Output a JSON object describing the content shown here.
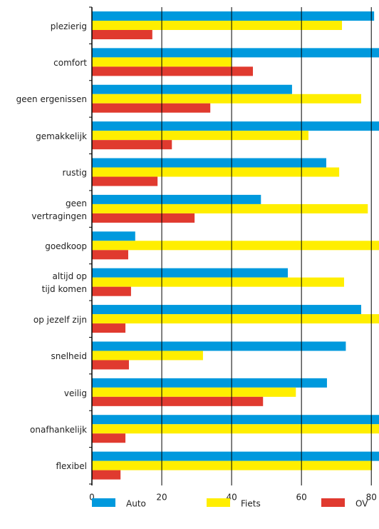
{
  "chart_data": {
    "type": "hbar",
    "categories": [
      "plezierig",
      "comfort",
      "geen ergenissen",
      "gemakkelijk",
      "rustig",
      "geen\nvertragingen",
      "goedkoop",
      "altijd op\ntijd komen",
      "op jezelf zijn",
      "snelheid",
      "veilig",
      "onafhankelijk",
      "flexibel"
    ],
    "series": [
      {
        "name": "Auto",
        "color": "#0099dd",
        "values": [
          80.8,
          85,
          57.3,
          85,
          67.1,
          48.4,
          12.4,
          56.1,
          77.1,
          72.7,
          67.3,
          85,
          85
        ]
      },
      {
        "name": "Fiets",
        "color": "#ffee00",
        "values": [
          71.6,
          40,
          77.1,
          62,
          70.8,
          79,
          85,
          72.2,
          85,
          31.8,
          58.4,
          85,
          80.2
        ]
      },
      {
        "name": "OV",
        "color": "#e03a2f",
        "values": [
          17.3,
          46.1,
          33.9,
          22.9,
          18.8,
          29.4,
          10.4,
          11.2,
          9.6,
          10.6,
          49,
          9.6,
          8.2
        ]
      }
    ],
    "xlim": [
      0,
      82.2
    ],
    "xticks": [
      0,
      20,
      40,
      60,
      80
    ],
    "grid": true
  }
}
